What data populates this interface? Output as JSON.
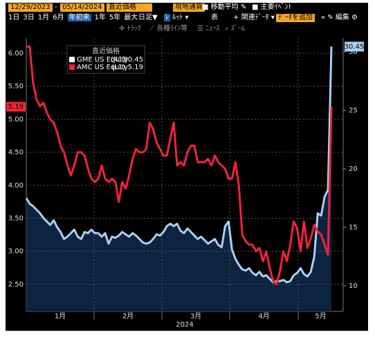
{
  "toolbar": {
    "start_date": "12/29/2023",
    "end_date": "05/14/2024",
    "field": "直近価格",
    "currency": "現地通貨",
    "moving_average": "移動平均",
    "key_events": "主要ｲﾍﾞﾝﾄ",
    "ranges": [
      "1日",
      "3日",
      "1月",
      "6月",
      "年初来",
      "1年",
      "5年",
      "最大"
    ],
    "frequency": "日足",
    "line_type": "ﾙｯﾄ",
    "table": "表",
    "related": "関連ﾃﾞｰﾀ",
    "add_data": "ﾃﾞｰﾀを追加",
    "edit": "編集",
    "tools": [
      "ﾄﾗｯｸ",
      "各種ﾗｲﾝ等",
      "ﾆｭｰｽ",
      "ｽﾞｰﾑ"
    ]
  },
  "chart_data": {
    "type": "line",
    "legend_title": "直近価格",
    "x_labels": [
      "1月",
      "2月",
      "3月",
      "4月",
      "5月"
    ],
    "x_year": "2024",
    "ylim": [
      2.09,
      6.23
    ],
    "yticks": [
      {
        "value": 2.5,
        "label": "2.50"
      },
      {
        "value": 3,
        "label": "3.00"
      },
      {
        "value": 3.5,
        "label": "3.50"
      },
      {
        "value": 4,
        "label": "4.00"
      },
      {
        "value": 4.5,
        "label": "4.50"
      },
      {
        "value": 5,
        "label": "5.00"
      },
      {
        "value": 5.5,
        "label": "5.50"
      },
      {
        "value": 6,
        "label": "6.00"
      }
    ],
    "y2lim": [
      7.81,
      31.18
    ],
    "y2ticks": [
      10,
      15,
      20,
      25,
      30
    ],
    "grid": true,
    "series": [
      {
        "name": "GME US Equity",
        "axis_label": "(R1)",
        "axis": "y2",
        "color": "#a9d1f2",
        "fill": "#0e2340",
        "values": [
          17.5,
          17.0,
          16.8,
          16.5,
          16.2,
          15.8,
          15.5,
          15.2,
          15.6,
          15.0,
          14.6,
          14.0,
          14.2,
          14.5,
          14.8,
          14.2,
          14.0,
          14.6,
          14.5,
          14.8,
          14.5,
          14.5,
          14.2,
          14.5,
          13.6,
          14.2,
          14.1,
          14.3,
          14.6,
          14.4,
          14.2,
          14.5,
          14.3,
          14.0,
          13.7,
          13.6,
          13.7,
          14.0,
          14.4,
          14.3,
          14.6,
          15.1,
          15.3,
          15.1,
          15.3,
          14.7,
          14.5,
          14.9,
          14.6,
          14.3,
          14.0,
          14.2,
          13.9,
          13.6,
          13.8,
          14.0,
          13.5,
          13.3,
          15.1,
          15.5,
          13.1,
          12.3,
          11.8,
          11.4,
          11.3,
          11.5,
          11.1,
          10.9,
          11.2,
          10.8,
          10.9,
          10.6,
          10.3,
          10.4,
          10.4,
          10.5,
          10.3,
          10.4,
          10.9,
          11.1,
          11.5,
          11.0,
          10.8,
          11.2,
          12.5,
          16.2,
          16.0,
          17.6,
          18.2,
          30.45
        ]
      },
      {
        "name": "AMC US Equity",
        "axis_label": "(L1)",
        "axis": "y",
        "color": "#f0243b",
        "values": [
          6.1,
          6.1,
          5.55,
          5.3,
          5.2,
          5.25,
          5.1,
          5.0,
          4.95,
          4.8,
          4.6,
          4.5,
          4.3,
          4.15,
          4.3,
          4.5,
          4.5,
          4.45,
          4.25,
          4.1,
          4.05,
          4.1,
          4.3,
          4.1,
          4.05,
          4.1,
          4.05,
          3.75,
          4.05,
          3.95,
          4.15,
          4.4,
          4.55,
          4.5,
          4.5,
          4.55,
          4.95,
          4.85,
          4.65,
          4.55,
          4.45,
          4.45,
          4.7,
          4.95,
          4.3,
          4.35,
          4.3,
          4.5,
          4.6,
          4.6,
          4.35,
          4.35,
          4.35,
          4.4,
          4.3,
          4.45,
          4.35,
          4.3,
          4.25,
          4.1,
          4.1,
          4.35,
          4.0,
          3.25,
          3.15,
          3.1,
          3.1,
          3.0,
          3.05,
          2.85,
          3.0,
          2.75,
          2.55,
          2.5,
          2.7,
          3.0,
          2.85,
          3.1,
          3.45,
          3.35,
          3.0,
          3.45,
          3.05,
          3.2,
          3.4,
          3.3,
          3.25,
          3.1,
          2.95,
          5.19
        ]
      }
    ]
  }
}
